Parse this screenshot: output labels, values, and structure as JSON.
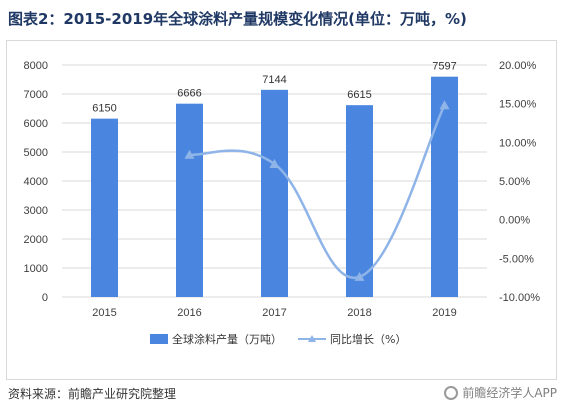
{
  "title": "图表2：2015-2019年全球涂料产量规模变化情况(单位：万吨，%)",
  "source": "资料来源：前瞻产业研究院整理",
  "watermark": "前瞻经济学人APP",
  "colors": {
    "bar": "#4a86e0",
    "line": "#8fb4e8",
    "grid": "#d9d9d9",
    "axis_text": "#404040"
  },
  "chart_data": {
    "type": "bar",
    "categories": [
      "2015",
      "2016",
      "2017",
      "2018",
      "2019"
    ],
    "series": [
      {
        "name": "全球涂料产量（万吨）",
        "type": "bar",
        "axis": "left",
        "values": [
          6150,
          6666,
          7144,
          6615,
          7597
        ],
        "labels": [
          "6150",
          "6666",
          "7144",
          "6615",
          "7597"
        ]
      },
      {
        "name": "同比增长（%）",
        "type": "line",
        "axis": "right",
        "values": [
          null,
          8.4,
          7.2,
          -7.4,
          14.8
        ]
      }
    ],
    "ylim_left": [
      0,
      8000
    ],
    "yticks_left": [
      "0",
      "1000",
      "2000",
      "3000",
      "4000",
      "5000",
      "6000",
      "7000",
      "8000"
    ],
    "ylim_right": [
      -10,
      20
    ],
    "yticks_right": [
      "-10.00%",
      "-5.00%",
      "0.00%",
      "5.00%",
      "10.00%",
      "15.00%",
      "20.00%"
    ],
    "legend_position": "bottom"
  }
}
